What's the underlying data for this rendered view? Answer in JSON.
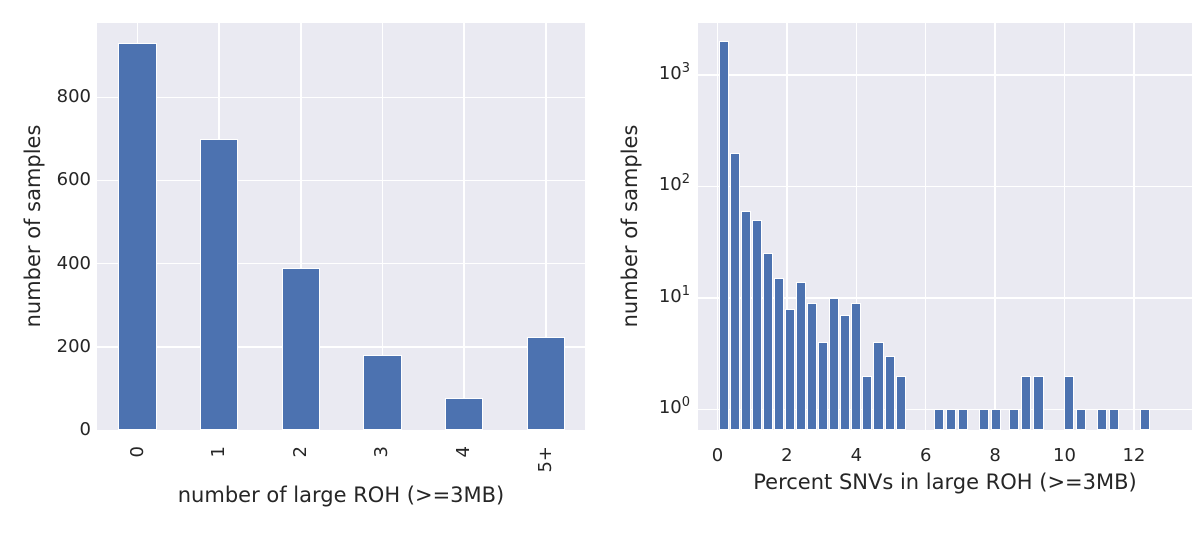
{
  "figure": {
    "background_color": "#ffffff",
    "plot_background_color": "#eaeaf2",
    "grid_color": "#ffffff",
    "bar_color": "#4c72b0",
    "text_color": "#262626"
  },
  "chart_data": [
    {
      "type": "bar",
      "title": "",
      "xlabel": "number of large ROH (>=3MB)",
      "ylabel": "number of samples",
      "categories": [
        "0",
        "1",
        "2",
        "3",
        "4",
        "5+"
      ],
      "values": [
        930,
        700,
        390,
        180,
        78,
        224
      ],
      "yticks": [
        0,
        200,
        400,
        600,
        800
      ],
      "ylim": [
        0,
        977
      ],
      "grid": true,
      "legend": false,
      "xtick_rotation": 90
    },
    {
      "type": "bar",
      "subtype": "histogram",
      "title": "",
      "xlabel": "Percent SNVs in large ROH (>=3MB)",
      "ylabel": "number of samples",
      "yscale": "log",
      "ylim": [
        0.65,
        2900
      ],
      "xlim": [
        -0.56,
        13.68
      ],
      "xticks": [
        0,
        2,
        4,
        6,
        8,
        10,
        12
      ],
      "ytick_base": "10",
      "ytick_exponents": [
        0,
        1,
        2,
        3
      ],
      "bin_width": 0.29,
      "x": [
        0.18,
        0.5,
        0.82,
        1.14,
        1.46,
        1.77,
        2.09,
        2.41,
        2.73,
        3.05,
        3.37,
        3.68,
        4.0,
        4.32,
        4.64,
        4.96,
        5.28,
        6.39,
        6.74,
        7.08,
        7.68,
        8.03,
        8.55,
        8.9,
        9.25,
        10.13,
        10.48,
        11.08,
        11.43,
        12.32
      ],
      "values": [
        2000,
        200,
        60,
        50,
        25,
        15,
        8,
        14,
        9,
        4,
        10,
        7,
        9,
        2,
        4,
        3,
        2,
        1,
        1,
        1,
        1,
        1,
        1,
        2,
        2,
        2,
        1,
        1,
        1,
        1
      ],
      "grid": true,
      "legend": false
    }
  ]
}
